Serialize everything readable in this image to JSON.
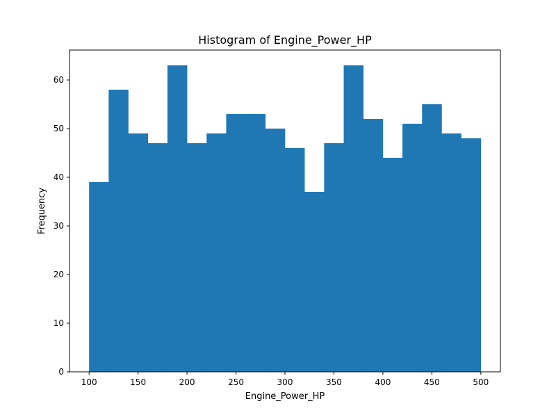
{
  "chart_data": {
    "type": "bar",
    "title": "Histogram of Engine_Power_HP",
    "xlabel": "Engine_Power_HP",
    "ylabel": "Frequency",
    "bin_edges": [
      100,
      120,
      140,
      160,
      180,
      200,
      220,
      240,
      260,
      280,
      300,
      320,
      340,
      360,
      380,
      400,
      420,
      440,
      460,
      480,
      500
    ],
    "values": [
      39,
      58,
      49,
      47,
      63,
      47,
      49,
      53,
      53,
      50,
      46,
      37,
      47,
      63,
      52,
      44,
      51,
      55,
      49,
      48
    ],
    "xlim": [
      80,
      520
    ],
    "ylim": [
      0,
      66.15
    ],
    "x_ticks": [
      100,
      150,
      200,
      250,
      300,
      350,
      400,
      450,
      500
    ],
    "y_ticks": [
      0,
      10,
      20,
      30,
      40,
      50,
      60
    ],
    "bar_color": "#1f77b4",
    "grid": false,
    "legend": "none"
  }
}
